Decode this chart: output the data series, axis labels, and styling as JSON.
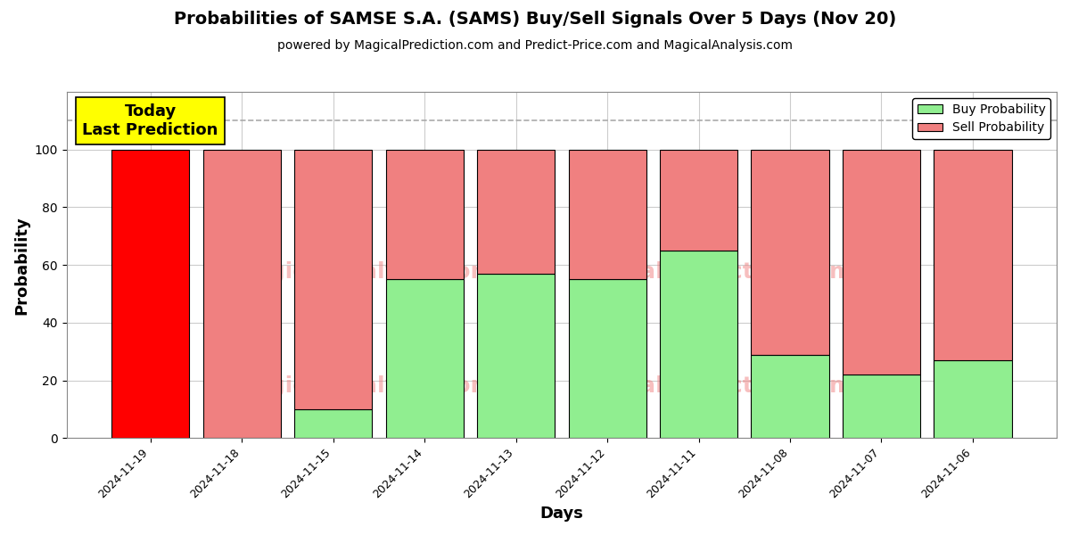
{
  "title": "Probabilities of SAMSE S.A. (SAMS) Buy/Sell Signals Over 5 Days (Nov 20)",
  "subtitle": "powered by MagicalPrediction.com and Predict-Price.com and MagicalAnalysis.com",
  "xlabel": "Days",
  "ylabel": "Probability",
  "categories": [
    "2024-11-19",
    "2024-11-18",
    "2024-11-15",
    "2024-11-14",
    "2024-11-13",
    "2024-11-12",
    "2024-11-11",
    "2024-11-08",
    "2024-11-07",
    "2024-11-06"
  ],
  "buy_values": [
    0,
    0,
    10,
    55,
    57,
    55,
    65,
    29,
    22,
    27
  ],
  "sell_values": [
    100,
    100,
    90,
    45,
    43,
    45,
    35,
    71,
    78,
    73
  ],
  "today_index": 0,
  "today_label": "Today\nLast Prediction",
  "today_label_bg": "#ffff00",
  "dashed_line_y": 110,
  "dashed_line_color": "#aaaaaa",
  "ylim": [
    0,
    120
  ],
  "yticks": [
    0,
    20,
    40,
    60,
    80,
    100
  ],
  "watermark_lines": [
    "MagicalAnalysis.com",
    "MagicalPrediction.com"
  ],
  "watermark_color": "#f08080",
  "watermark_alpha": 0.5,
  "legend_buy_label": "Buy Probability",
  "legend_sell_label": "Sell Probability",
  "bar_edge_color": "#000000",
  "bar_linewidth": 0.8,
  "bar_width": 0.85,
  "background_color": "#ffffff",
  "grid_color": "#cccccc",
  "buy_color_normal": "#90ee90",
  "sell_color_normal": "#f08080",
  "sell_color_today": "#ff0000",
  "title_fontsize": 14,
  "subtitle_fontsize": 10,
  "xlabel_fontsize": 13,
  "ylabel_fontsize": 13
}
